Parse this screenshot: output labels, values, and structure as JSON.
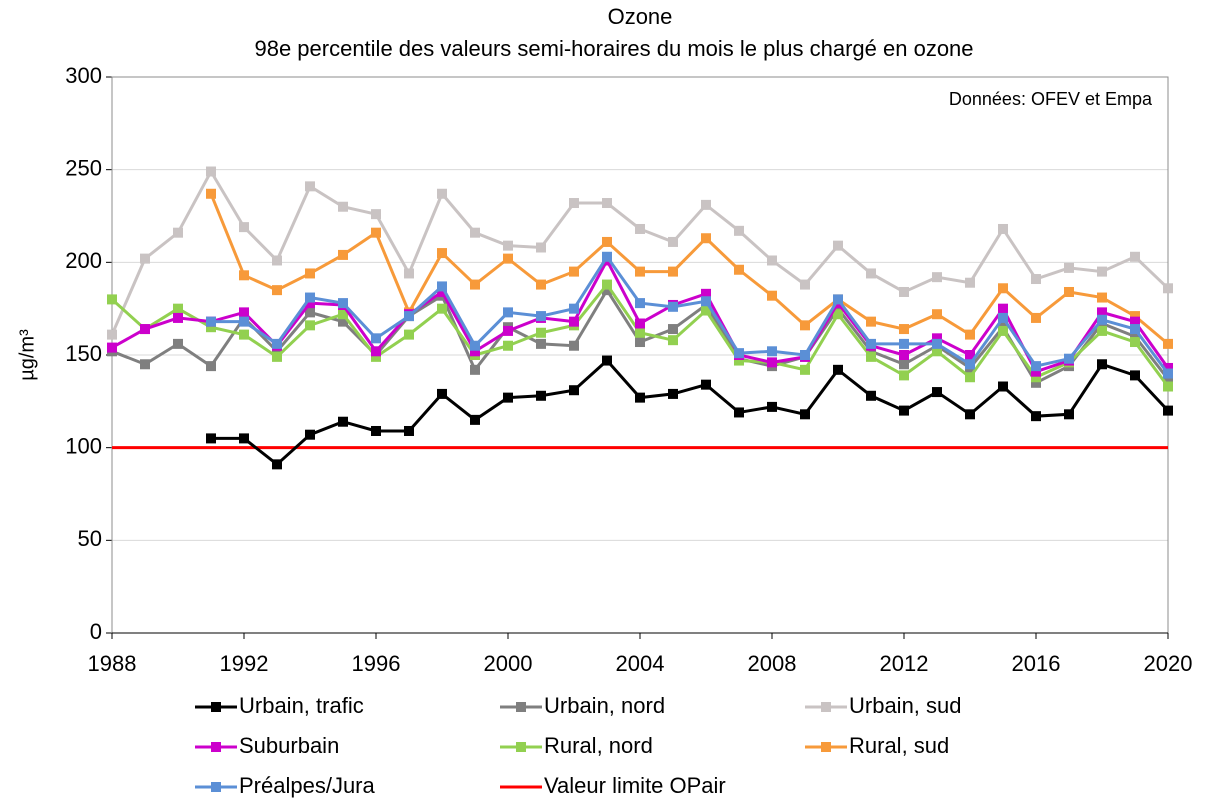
{
  "chart_data": {
    "type": "line",
    "title": "Ozone",
    "subtitle": "98e percentile des valeurs semi-horaires du mois le plus chargé en ozone",
    "y_label": "µg/m³",
    "annotation": "Données: OFEV et Empa",
    "x": [
      1988,
      1989,
      1990,
      1991,
      1992,
      1993,
      1994,
      1995,
      1996,
      1997,
      1998,
      1999,
      2000,
      2001,
      2002,
      2003,
      2004,
      2005,
      2006,
      2007,
      2008,
      2009,
      2010,
      2011,
      2012,
      2013,
      2014,
      2015,
      2016,
      2017,
      2018,
      2019,
      2020
    ],
    "xlim": [
      1988,
      2020
    ],
    "xticks": [
      1988,
      1992,
      1996,
      2000,
      2004,
      2008,
      2012,
      2016,
      2020
    ],
    "ylim": [
      0,
      300
    ],
    "yticks": [
      0,
      50,
      100,
      150,
      200,
      250,
      300
    ],
    "grid": true,
    "series": [
      {
        "name": "Urbain, trafic",
        "color": "#000000",
        "values": [
          null,
          null,
          null,
          105,
          105,
          91,
          107,
          114,
          109,
          109,
          129,
          115,
          127,
          128,
          131,
          147,
          127,
          129,
          134,
          119,
          122,
          118,
          142,
          128,
          120,
          130,
          118,
          133,
          117,
          118,
          145,
          139,
          120
        ]
      },
      {
        "name": "Urbain, nord",
        "color": "#7f7f7f",
        "values": [
          152,
          145,
          156,
          144,
          170,
          152,
          173,
          168,
          150,
          171,
          182,
          142,
          165,
          156,
          155,
          185,
          157,
          164,
          177,
          148,
          144,
          149,
          175,
          152,
          145,
          155,
          143,
          165,
          135,
          144,
          167,
          160,
          137
        ]
      },
      {
        "name": "Urbain, sud",
        "color": "#c9c3c3",
        "values": [
          161,
          202,
          216,
          249,
          219,
          201,
          241,
          230,
          226,
          194,
          237,
          216,
          209,
          208,
          232,
          232,
          218,
          211,
          231,
          217,
          201,
          188,
          209,
          194,
          184,
          192,
          189,
          218,
          191,
          197,
          195,
          203,
          186
        ]
      },
      {
        "name": "Suburbain",
        "color": "#cc00cc",
        "values": [
          154,
          164,
          170,
          168,
          173,
          155,
          178,
          177,
          152,
          172,
          184,
          152,
          163,
          170,
          168,
          201,
          167,
          177,
          183,
          150,
          146,
          149,
          178,
          155,
          150,
          159,
          150,
          175,
          141,
          147,
          173,
          168,
          143
        ]
      },
      {
        "name": "Rural, nord",
        "color": "#92d050",
        "values": [
          180,
          164,
          175,
          165,
          161,
          149,
          166,
          172,
          149,
          161,
          175,
          150,
          155,
          162,
          166,
          188,
          162,
          158,
          174,
          147,
          146,
          142,
          172,
          149,
          139,
          152,
          138,
          163,
          138,
          146,
          163,
          157,
          133
        ]
      },
      {
        "name": "Rural, sud",
        "color": "#f79a3a",
        "values": [
          null,
          null,
          null,
          237,
          193,
          185,
          194,
          204,
          216,
          173,
          205,
          188,
          202,
          188,
          195,
          211,
          195,
          195,
          213,
          196,
          182,
          166,
          180,
          168,
          164,
          172,
          161,
          186,
          170,
          184,
          181,
          171,
          156
        ]
      },
      {
        "name": "Préalpes/Jura",
        "color": "#5b8fd6",
        "values": [
          null,
          null,
          null,
          168,
          168,
          156,
          181,
          178,
          159,
          171,
          187,
          155,
          173,
          171,
          175,
          203,
          178,
          176,
          179,
          151,
          152,
          150,
          180,
          156,
          156,
          156,
          145,
          170,
          144,
          148,
          169,
          164,
          140
        ]
      }
    ],
    "threshold": {
      "name": "Valeur limite OPair",
      "value": 100,
      "color": "#ff0000"
    }
  }
}
